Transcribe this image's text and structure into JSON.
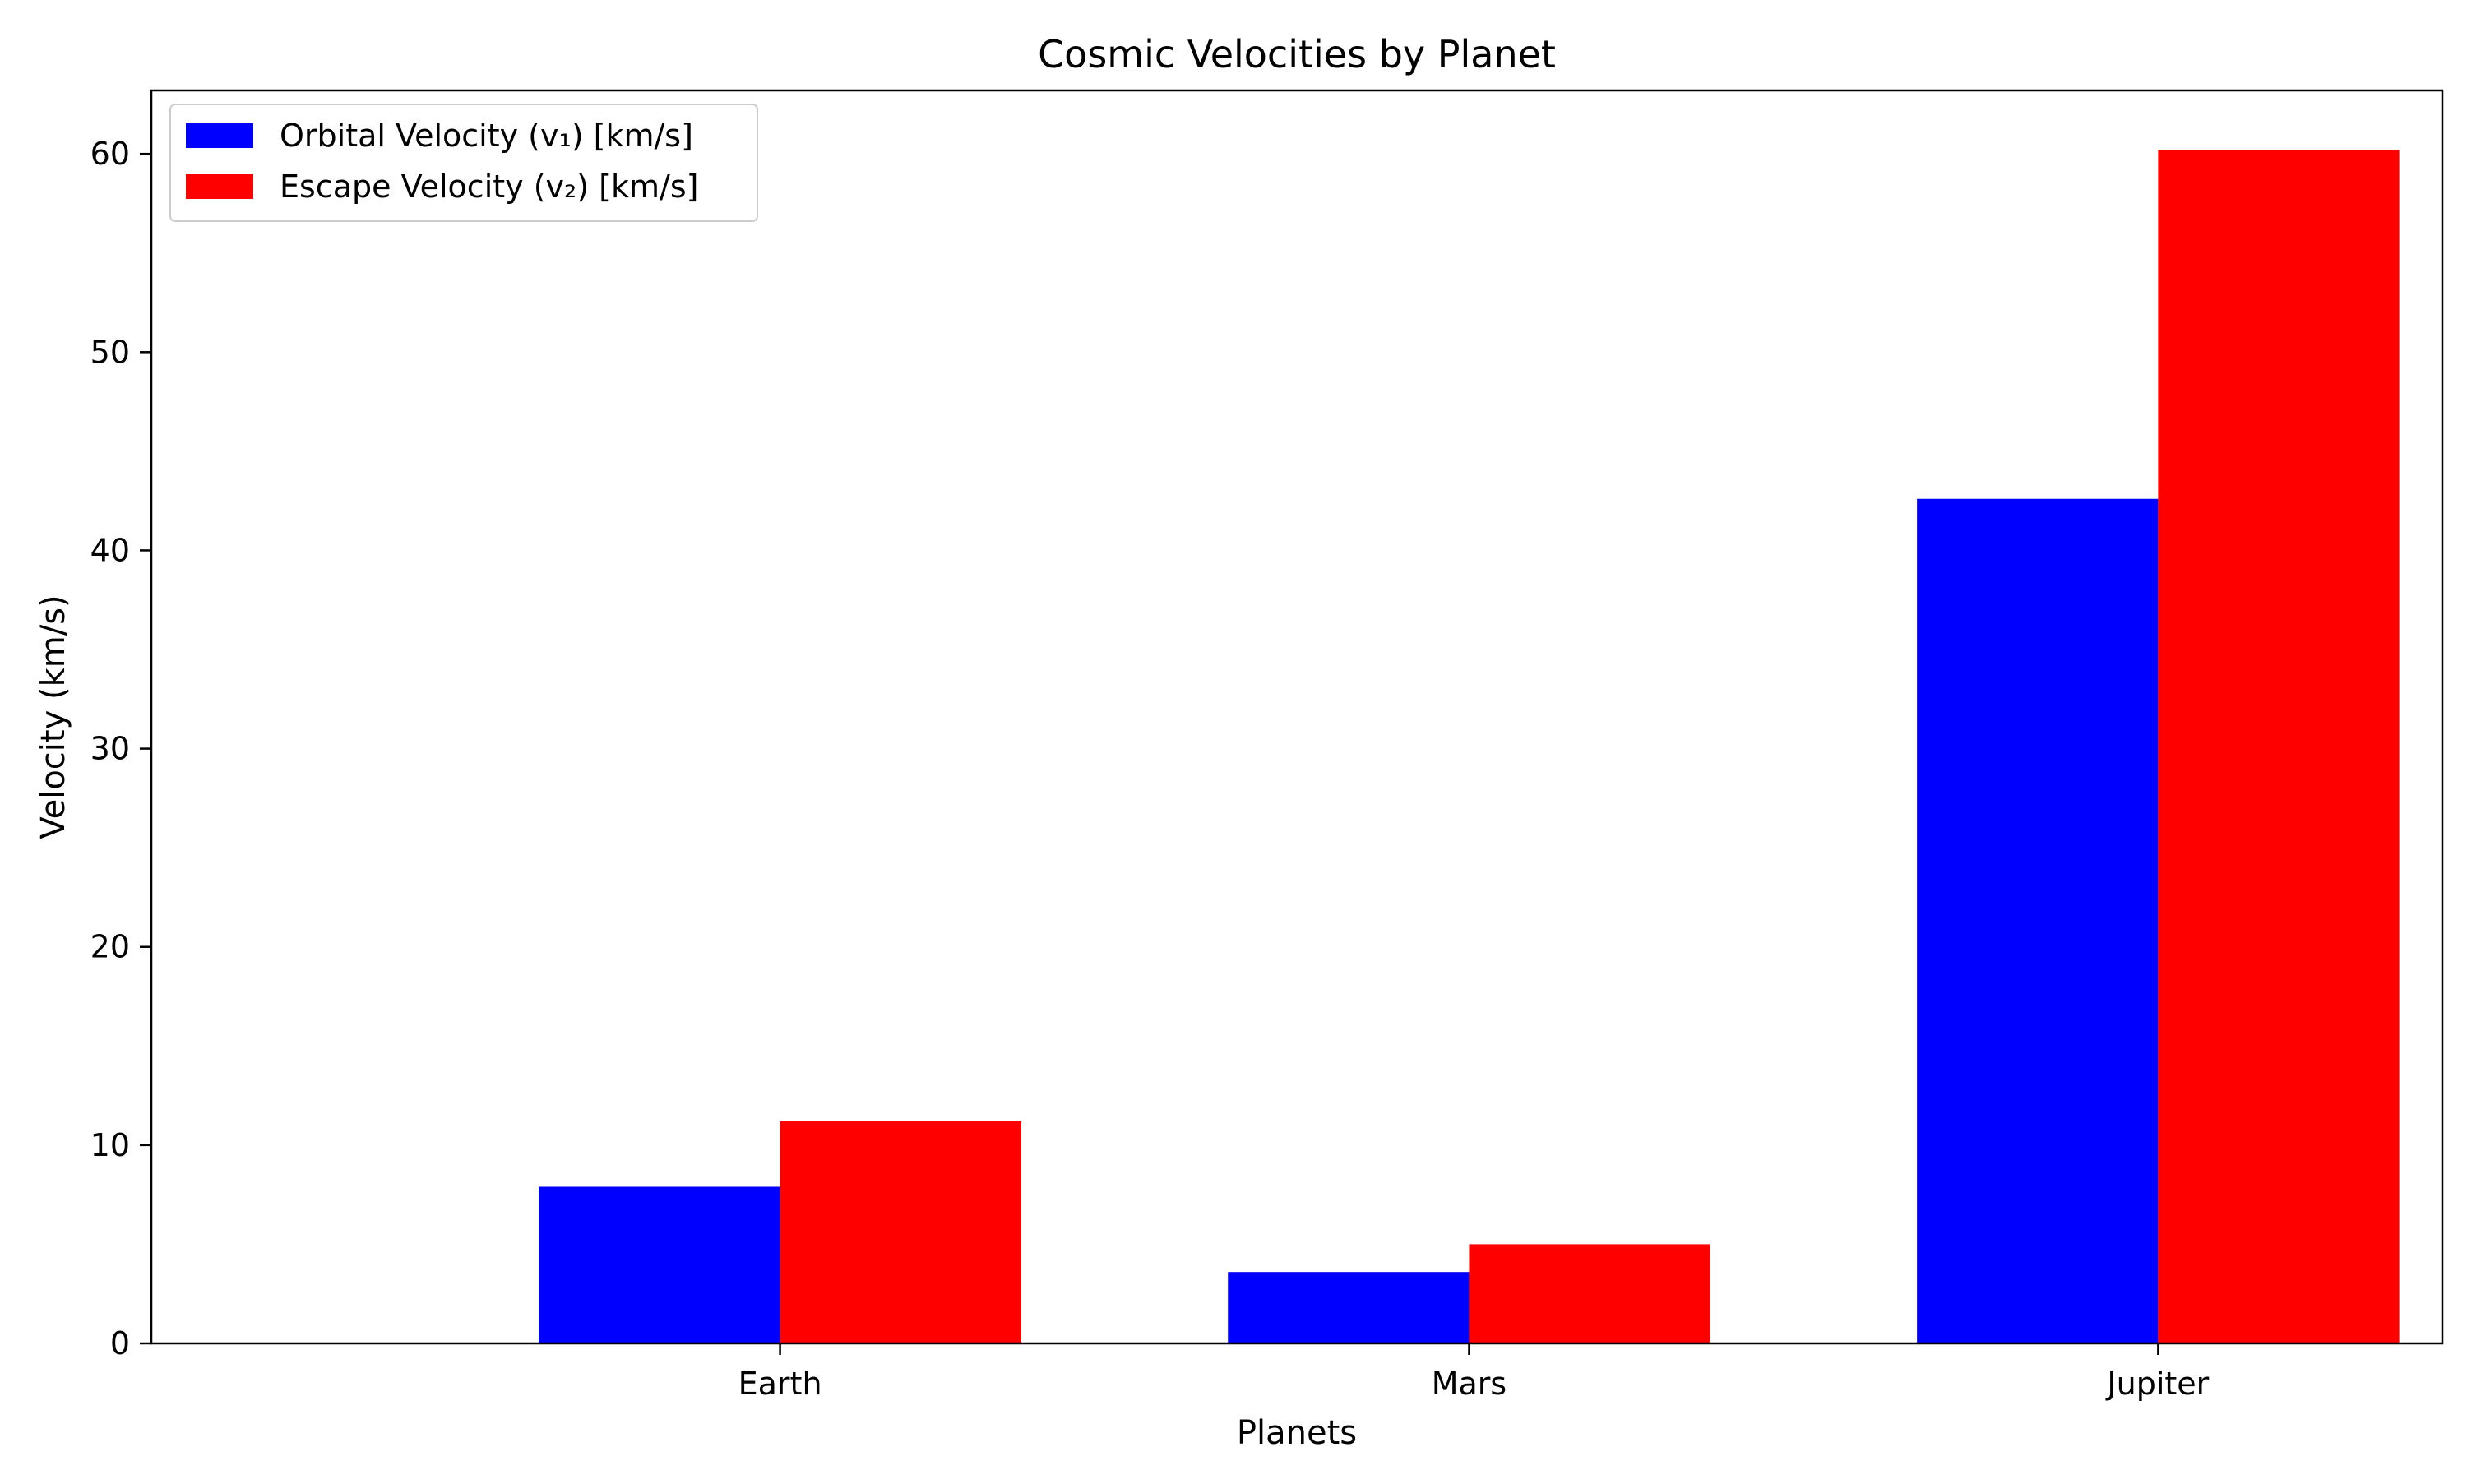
{
  "chart_data": {
    "type": "bar",
    "title": "Cosmic Velocities by Planet",
    "xlabel": "Planets",
    "ylabel": "Velocity (km/s)",
    "categories": [
      "Earth",
      "Mars",
      "Jupiter"
    ],
    "series": [
      {
        "name": "Orbital Velocity (v₁) [km/s]",
        "values": [
          7.9,
          3.6,
          42.6
        ],
        "color": "#0000ff"
      },
      {
        "name": "Escape Velocity (v₂) [km/s]",
        "values": [
          11.2,
          5.0,
          60.2
        ],
        "color": "#ff0000"
      }
    ],
    "ylim": [
      0,
      63.2
    ],
    "yticks": [
      0,
      10,
      20,
      30,
      40,
      50,
      60
    ],
    "grid": false,
    "legend_position": "top-left"
  }
}
